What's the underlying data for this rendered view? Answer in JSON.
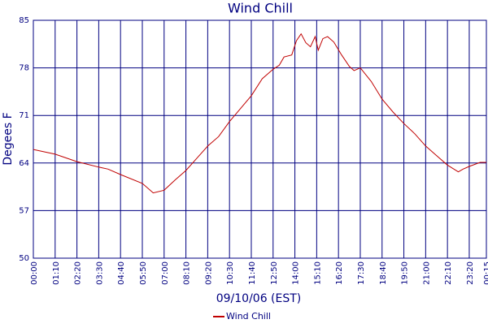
{
  "chart_data": {
    "type": "line",
    "title": "Wind Chill",
    "x_label": "09/10/06 (EST)",
    "y_label": "Degees F",
    "x": [
      0,
      70,
      140,
      210,
      240,
      280,
      350,
      385,
      420,
      455,
      490,
      525,
      560,
      595,
      630,
      665,
      700,
      735,
      770,
      790,
      805,
      830,
      845,
      860,
      875,
      890,
      905,
      915,
      930,
      945,
      965,
      990,
      1015,
      1030,
      1050,
      1085,
      1120,
      1155,
      1190,
      1225,
      1260,
      1295,
      1330,
      1365,
      1380,
      1400,
      1435,
      1455
    ],
    "series": [
      {
        "name": "Wind Chill",
        "color": "#c00000",
        "values": [
          66.0,
          65.3,
          64.2,
          63.4,
          63.1,
          62.3,
          61.0,
          59.6,
          60.0,
          61.5,
          62.9,
          64.7,
          66.5,
          67.9,
          70.1,
          72.0,
          73.9,
          76.4,
          77.8,
          78.4,
          79.6,
          79.9,
          82.0,
          83.0,
          81.7,
          81.1,
          82.6,
          80.6,
          82.3,
          82.6,
          81.8,
          79.9,
          78.2,
          77.6,
          78.0,
          76.0,
          73.4,
          71.5,
          69.8,
          68.3,
          66.5,
          65.1,
          63.7,
          62.7,
          63.1,
          63.5,
          64.1,
          64.1
        ]
      }
    ],
    "xlim": [
      0,
      1455
    ],
    "xticks": [
      {
        "value": 0,
        "label": "00:00"
      },
      {
        "value": 70,
        "label": "01:10"
      },
      {
        "value": 140,
        "label": "02:20"
      },
      {
        "value": 210,
        "label": "03:30"
      },
      {
        "value": 280,
        "label": "04:40"
      },
      {
        "value": 350,
        "label": "05:50"
      },
      {
        "value": 420,
        "label": "07:00"
      },
      {
        "value": 490,
        "label": "08:10"
      },
      {
        "value": 560,
        "label": "09:20"
      },
      {
        "value": 630,
        "label": "10:30"
      },
      {
        "value": 700,
        "label": "11:40"
      },
      {
        "value": 770,
        "label": "12:50"
      },
      {
        "value": 840,
        "label": "14:00"
      },
      {
        "value": 910,
        "label": "15:10"
      },
      {
        "value": 980,
        "label": "16:20"
      },
      {
        "value": 1050,
        "label": "17:30"
      },
      {
        "value": 1120,
        "label": "18:40"
      },
      {
        "value": 1190,
        "label": "19:50"
      },
      {
        "value": 1260,
        "label": "21:00"
      },
      {
        "value": 1330,
        "label": "22:10"
      },
      {
        "value": 1400,
        "label": "23:20"
      },
      {
        "value": 1455,
        "label": "00:15"
      }
    ],
    "ylim": [
      50,
      85
    ],
    "yticks": [
      50,
      57,
      64,
      71,
      78,
      85
    ],
    "grid": true
  }
}
